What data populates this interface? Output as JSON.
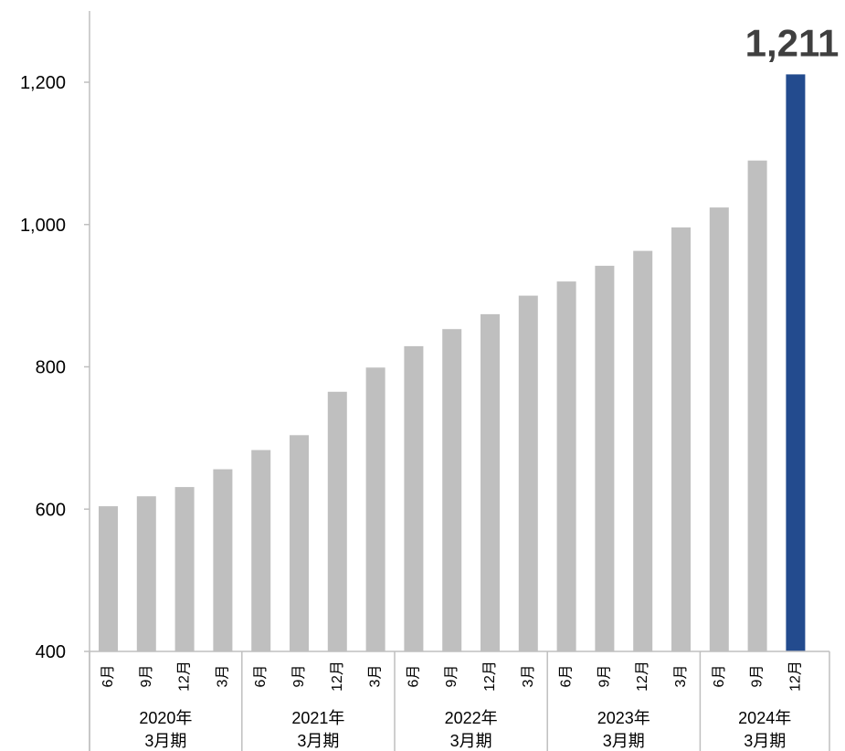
{
  "chart_data": {
    "type": "bar",
    "categories": [
      "6月",
      "9月",
      "12月",
      "3月",
      "6月",
      "9月",
      "12月",
      "3月",
      "6月",
      "9月",
      "12月",
      "3月",
      "6月",
      "9月",
      "12月",
      "3月",
      "6月",
      "9月",
      "12月"
    ],
    "groups": [
      {
        "line1": "2020年",
        "line2": "3月期",
        "count": 4
      },
      {
        "line1": "2021年",
        "line2": "3月期",
        "count": 4
      },
      {
        "line1": "2022年",
        "line2": "3月期",
        "count": 4
      },
      {
        "line1": "2023年",
        "line2": "3月期",
        "count": 4
      },
      {
        "line1": "2024年",
        "line2": "3月期",
        "count": 3
      }
    ],
    "values": [
      604,
      618,
      631,
      656,
      683,
      704,
      765,
      799,
      829,
      853,
      874,
      900,
      920,
      942,
      963,
      996,
      1024,
      1090,
      1211
    ],
    "ylim": [
      400,
      1300
    ],
    "yticks": [
      400,
      600,
      800,
      1000,
      1200
    ],
    "ytick_labels": [
      "400",
      "600",
      "800",
      "1,000",
      "1,200"
    ],
    "highlight_index": 18,
    "callout": "1,211",
    "colors": {
      "bar": "#bfbfbf",
      "highlight": "#234b8e",
      "axis": "#bfbfbf"
    },
    "grid": false
  }
}
